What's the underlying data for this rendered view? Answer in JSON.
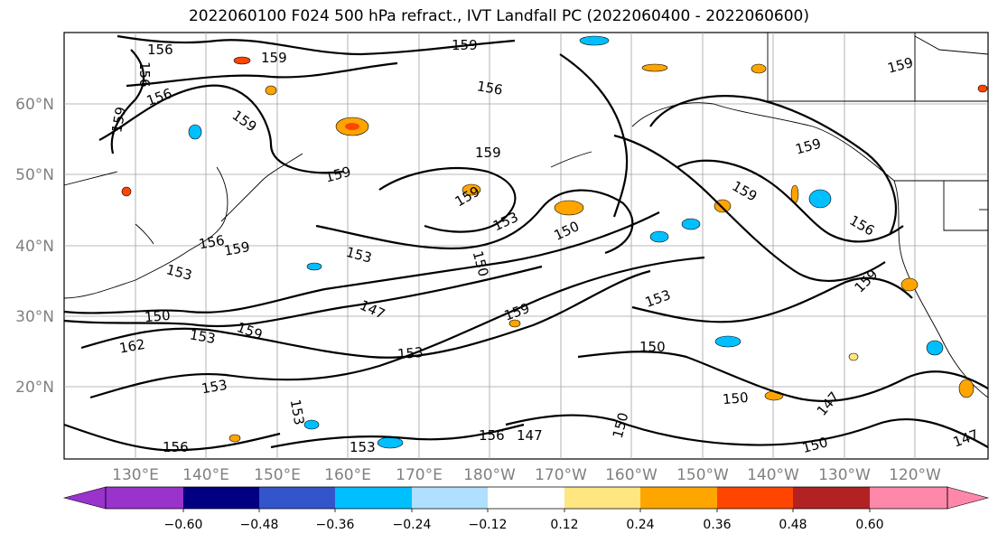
{
  "title": "2022060100 F024 500 hPa refract., IVT Landfall PC (2022060400 - 2022060600)",
  "lat_labels": [
    "60°N",
    "50°N",
    "40°N",
    "30°N",
    "20°N"
  ],
  "lon_labels": [
    "130°E",
    "140°E",
    "150°E",
    "160°E",
    "170°E",
    "180°W",
    "170°W",
    "160°W",
    "150°W",
    "140°W",
    "130°W",
    "120°W"
  ],
  "contour_labels": [
    "156",
    "159",
    "156",
    "156",
    "159",
    "159",
    "159",
    "159",
    "159",
    "156",
    "159",
    "159",
    "159",
    "156",
    "159",
    "153",
    "150",
    "153",
    "159",
    "156",
    "153",
    "150",
    "147",
    "150",
    "153",
    "159",
    "159",
    "153",
    "150",
    "153",
    "153",
    "162",
    "150",
    "159",
    "153",
    "153",
    "147",
    "150",
    "156",
    "147",
    "150",
    "147",
    "156"
  ],
  "colorbar": {
    "ticks": [
      "−0.60",
      "−0.48",
      "−0.36",
      "−0.24",
      "−0.12",
      "0.12",
      "0.24",
      "0.36",
      "0.48",
      "0.60"
    ],
    "colors": [
      "#9933cc",
      "#000080",
      "#3355cc",
      "#00bfff",
      "#b0e0ff",
      "#ffffff",
      "#ffe680",
      "#ffa500",
      "#ff4500",
      "#b22222",
      "#ff88aa"
    ]
  }
}
